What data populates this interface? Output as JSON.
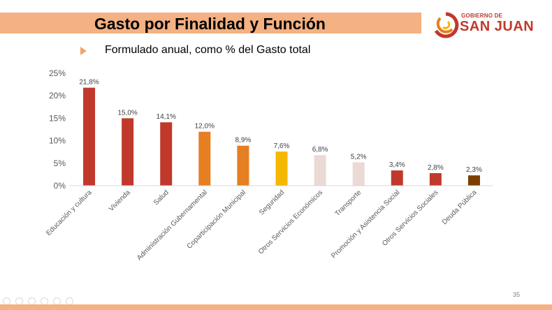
{
  "header": {
    "title": "Gasto por Finalidad y Función"
  },
  "logo": {
    "line1": "GOBIERNO DE",
    "line2": "SAN JUAN"
  },
  "subtitle": "Formulado anual, como % del Gasto total",
  "page_number": "35",
  "chart_data": {
    "type": "bar",
    "title": "",
    "xlabel": "",
    "ylabel": "",
    "ylim": [
      0,
      25
    ],
    "yticks": [
      "0%",
      "5%",
      "10%",
      "15%",
      "20%",
      "25%"
    ],
    "grid": false,
    "categories": [
      "Educación y cultura",
      "Vivienda",
      "Salud",
      "Administración Gubernamental",
      "Coparticipación Municipal",
      "Seguridad",
      "Otros Servicios Económicos",
      "Transporte",
      "Promoción y Asistencia Social",
      "Otros Servicios Sociales",
      "Deuda Pública"
    ],
    "values": [
      21.8,
      15.0,
      14.1,
      12.0,
      8.9,
      7.6,
      6.8,
      5.2,
      3.4,
      2.8,
      2.3
    ],
    "labels": [
      "21,8%",
      "15,0%",
      "14,1%",
      "12,0%",
      "8,9%",
      "7,6%",
      "6,8%",
      "5,2%",
      "3,4%",
      "2,8%",
      "2,3%"
    ],
    "colors": [
      "#c0392b",
      "#c0392b",
      "#c0392b",
      "#e67e22",
      "#e67e22",
      "#f5b800",
      "#ead9d5",
      "#ead9d5",
      "#c0392b",
      "#c0392b",
      "#7b3f00"
    ]
  }
}
